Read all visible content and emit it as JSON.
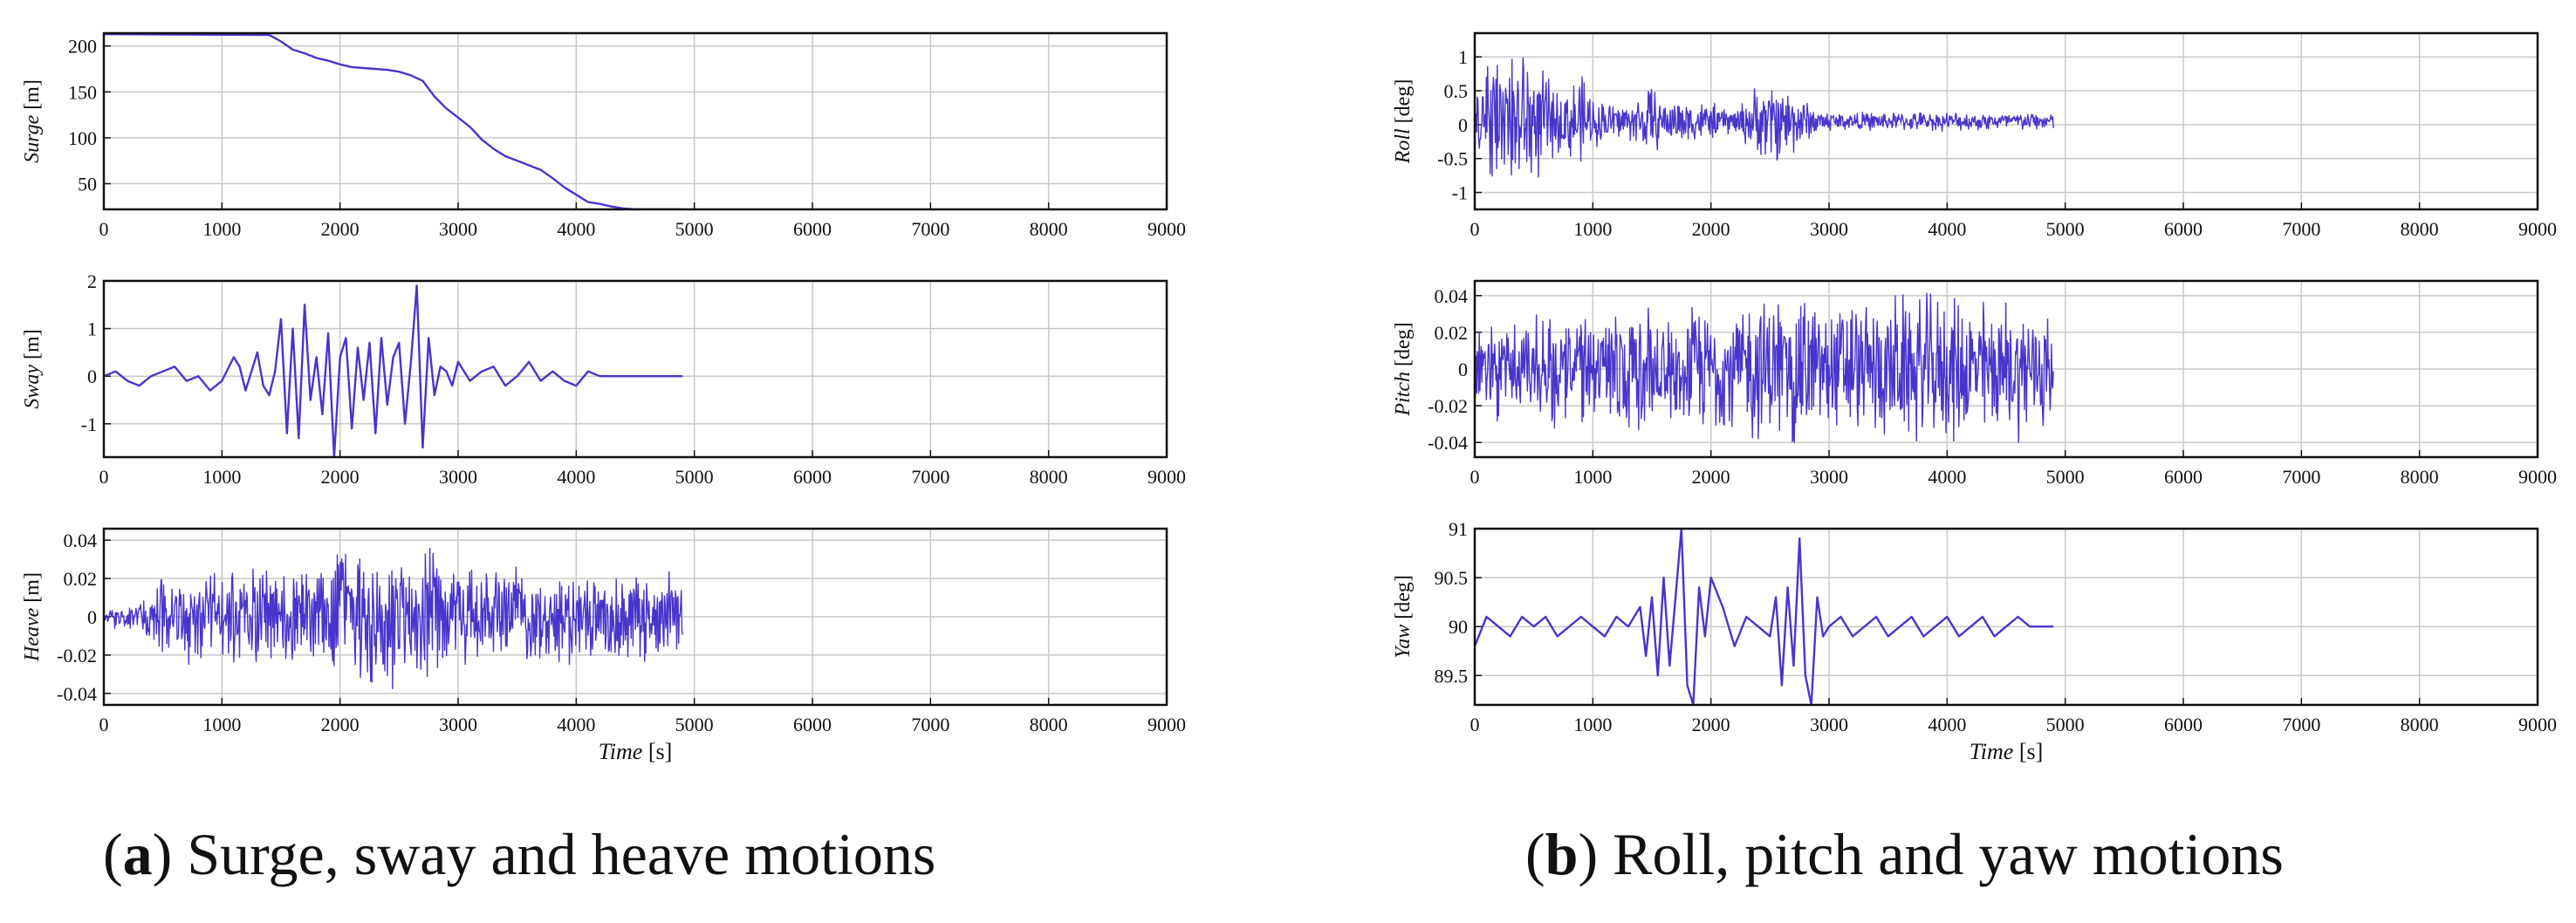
{
  "figure": {
    "captions": [
      {
        "letter": "a",
        "open": "(",
        "close": ")",
        "text": " Surge, sway and heave motions"
      },
      {
        "letter": "b",
        "open": "(",
        "close": ")",
        "text": " Roll, pitch and yaw motions"
      }
    ],
    "line_color": "#4a35cc",
    "grid_color": "#c8c8c8"
  },
  "chart_data": [
    {
      "type": "line",
      "panel": "a1",
      "ylabel": "Surge",
      "yunit": "[m]",
      "xlim": [
        0,
        9000
      ],
      "ylim": [
        22,
        214
      ],
      "xticks": [
        0,
        1000,
        2000,
        3000,
        4000,
        5000,
        6000,
        7000,
        8000,
        9000
      ],
      "yticks": [
        50,
        100,
        150,
        200
      ],
      "ytick_labels": [
        "50",
        "100",
        "150",
        "200"
      ],
      "xlabel": "",
      "xunit": "",
      "series": [
        {
          "kind": "path",
          "x": [
            0,
            1400,
            1500,
            1600,
            1700,
            1800,
            1900,
            2000,
            2100,
            2200,
            2300,
            2400,
            2500,
            2600,
            2700,
            2800,
            2900,
            3000,
            3100,
            3200,
            3300,
            3400,
            3500,
            3600,
            3700,
            3800,
            3900,
            4000,
            4100,
            4200,
            4300,
            4400,
            4500,
            4600,
            4700,
            4800,
            4900
          ],
          "y": [
            213,
            212,
            205,
            196,
            192,
            187,
            184,
            180,
            177,
            176,
            175,
            174,
            172,
            168,
            162,
            145,
            132,
            122,
            112,
            98,
            88,
            80,
            75,
            70,
            65,
            56,
            46,
            38,
            30,
            28,
            25,
            23,
            22,
            22,
            22,
            22,
            22
          ]
        }
      ]
    },
    {
      "type": "line",
      "panel": "a2",
      "ylabel": "Sway",
      "yunit": "[m]",
      "xlim": [
        0,
        9000
      ],
      "ylim": [
        -1.7,
        2.0
      ],
      "xticks": [
        0,
        1000,
        2000,
        3000,
        4000,
        5000,
        6000,
        7000,
        8000,
        9000
      ],
      "yticks": [
        -1,
        0,
        1,
        2
      ],
      "ytick_labels": [
        "-1",
        "0",
        "1",
        "2"
      ],
      "xlabel": "",
      "xunit": "",
      "series": [
        {
          "kind": "path",
          "x": [
            0,
            100,
            200,
            300,
            400,
            500,
            600,
            700,
            800,
            900,
            1000,
            1100,
            1150,
            1200,
            1250,
            1300,
            1350,
            1400,
            1450,
            1500,
            1550,
            1600,
            1650,
            1700,
            1750,
            1800,
            1850,
            1900,
            1950,
            2000,
            2050,
            2100,
            2150,
            2200,
            2250,
            2300,
            2350,
            2400,
            2450,
            2500,
            2550,
            2600,
            2650,
            2700,
            2750,
            2800,
            2850,
            2900,
            2950,
            3000,
            3100,
            3200,
            3300,
            3400,
            3500,
            3600,
            3700,
            3800,
            3900,
            4000,
            4100,
            4200,
            4300,
            4400,
            4500,
            4600,
            4700,
            4800,
            4900
          ],
          "y": [
            0,
            0.1,
            -0.1,
            -0.2,
            0,
            0.1,
            0.2,
            -0.1,
            0,
            -0.3,
            -0.1,
            0.4,
            0.2,
            -0.3,
            0.1,
            0.5,
            -0.2,
            -0.4,
            0.1,
            1.2,
            -1.2,
            1.0,
            -1.3,
            1.5,
            -0.5,
            0.4,
            -0.8,
            0.9,
            -1.7,
            0.4,
            0.8,
            -1.1,
            0.6,
            -0.5,
            0.7,
            -1.2,
            0.8,
            -0.6,
            0.4,
            0.7,
            -1.0,
            0.3,
            1.9,
            -1.5,
            0.8,
            -0.4,
            0.2,
            0.1,
            -0.2,
            0.3,
            -0.1,
            0.1,
            0.2,
            -0.2,
            0,
            0.3,
            -0.1,
            0.1,
            -0.1,
            -0.2,
            0.1,
            0,
            0,
            0,
            0,
            0,
            0,
            0,
            0
          ]
        }
      ]
    },
    {
      "type": "line",
      "panel": "a3",
      "ylabel": "Heave",
      "yunit": "[m]",
      "xlim": [
        0,
        9000
      ],
      "ylim": [
        -0.046,
        0.046
      ],
      "xticks": [
        0,
        1000,
        2000,
        3000,
        4000,
        5000,
        6000,
        7000,
        8000,
        9000
      ],
      "yticks": [
        -0.04,
        -0.02,
        0,
        0.02,
        0.04
      ],
      "ytick_labels": [
        "-0.04",
        "-0.02",
        "0",
        "0.02",
        "0.04"
      ],
      "xlabel": "Time",
      "xunit": "[s]",
      "series": [
        {
          "kind": "noise",
          "x_end": 4900,
          "envelope_x": [
            0,
            300,
            500,
            1500,
            1900,
            2100,
            2600,
            2800,
            3200,
            4300,
            4900
          ],
          "envelope_amp": [
            0.005,
            0.01,
            0.025,
            0.03,
            0.035,
            0.04,
            0.04,
            0.04,
            0.03,
            0.025,
            0.025
          ]
        }
      ]
    },
    {
      "type": "line",
      "panel": "b1",
      "ylabel": "Roll",
      "yunit": "[deg]",
      "xlim": [
        0,
        9000
      ],
      "ylim": [
        -1.25,
        1.35
      ],
      "xticks": [
        0,
        1000,
        2000,
        3000,
        4000,
        5000,
        6000,
        7000,
        8000,
        9000
      ],
      "yticks": [
        -1,
        -0.5,
        0,
        0.5,
        1
      ],
      "ytick_labels": [
        "-1",
        "-0.5",
        "0",
        "0.5",
        "1"
      ],
      "xlabel": "",
      "xunit": "",
      "series": [
        {
          "kind": "noise",
          "x_end": 4900,
          "envelope_x": [
            0,
            150,
            400,
            600,
            700,
            900,
            1000,
            1300,
            1500,
            1600,
            1700,
            2000,
            2200,
            2400,
            2600,
            2900,
            3100,
            4900
          ],
          "envelope_amp": [
            0.5,
            1.0,
            1.3,
            0.8,
            0.5,
            0.8,
            0.4,
            0.3,
            0.6,
            0.3,
            0.4,
            0.3,
            0.2,
            0.6,
            0.7,
            0.2,
            0.15,
            0.15
          ]
        }
      ]
    },
    {
      "type": "line",
      "panel": "b2",
      "ylabel": "Pitch",
      "yunit": "[deg]",
      "xlim": [
        0,
        9000
      ],
      "ylim": [
        -0.048,
        0.048
      ],
      "xticks": [
        0,
        1000,
        2000,
        3000,
        4000,
        5000,
        6000,
        7000,
        8000,
        9000
      ],
      "yticks": [
        -0.04,
        -0.02,
        0,
        0.02,
        0.04
      ],
      "ytick_labels": [
        "-0.04",
        "-0.02",
        "0",
        "0.02",
        "0.04"
      ],
      "xlabel": "",
      "xunit": "",
      "series": [
        {
          "kind": "noise",
          "x_end": 4900,
          "envelope_x": [
            0,
            500,
            1000,
            2000,
            2700,
            3000,
            3800,
            4900
          ],
          "envelope_amp": [
            0.03,
            0.035,
            0.035,
            0.038,
            0.048,
            0.04,
            0.045,
            0.04
          ]
        }
      ]
    },
    {
      "type": "line",
      "panel": "b3",
      "ylabel": "Yaw",
      "yunit": "[deg]",
      "xlim": [
        0,
        9000
      ],
      "ylim": [
        89.2,
        91.0
      ],
      "xticks": [
        0,
        1000,
        2000,
        3000,
        4000,
        5000,
        6000,
        7000,
        8000,
        9000
      ],
      "yticks": [
        89.5,
        90,
        90.5,
        91
      ],
      "ytick_labels": [
        "89.5",
        "90",
        "90.5",
        "91"
      ],
      "xlabel": "Time",
      "xunit": "[s]",
      "series": [
        {
          "kind": "path",
          "x": [
            0,
            100,
            200,
            300,
            400,
            500,
            600,
            700,
            800,
            900,
            1000,
            1100,
            1200,
            1300,
            1400,
            1450,
            1500,
            1550,
            1600,
            1650,
            1700,
            1750,
            1800,
            1850,
            1900,
            1950,
            2000,
            2100,
            2200,
            2300,
            2400,
            2500,
            2550,
            2600,
            2650,
            2700,
            2750,
            2800,
            2850,
            2900,
            2950,
            3000,
            3100,
            3200,
            3300,
            3400,
            3500,
            3600,
            3700,
            3800,
            3900,
            4000,
            4100,
            4200,
            4300,
            4400,
            4500,
            4600,
            4700,
            4800,
            4900
          ],
          "y": [
            89.8,
            90.1,
            90.0,
            89.9,
            90.1,
            90.0,
            90.1,
            89.9,
            90.0,
            90.1,
            90.0,
            89.9,
            90.1,
            90.0,
            90.2,
            89.7,
            90.3,
            89.5,
            90.5,
            89.6,
            90.3,
            91.0,
            89.4,
            89.2,
            90.4,
            89.9,
            90.5,
            90.2,
            89.8,
            90.1,
            90.0,
            89.9,
            90.3,
            89.4,
            90.4,
            89.6,
            90.9,
            89.5,
            89.2,
            90.3,
            89.9,
            90.0,
            90.1,
            89.9,
            90.0,
            90.1,
            89.9,
            90.0,
            90.1,
            89.9,
            90.0,
            90.1,
            89.9,
            90.0,
            90.1,
            89.9,
            90.0,
            90.1,
            90.0,
            90.0,
            90.0
          ]
        }
      ]
    }
  ]
}
